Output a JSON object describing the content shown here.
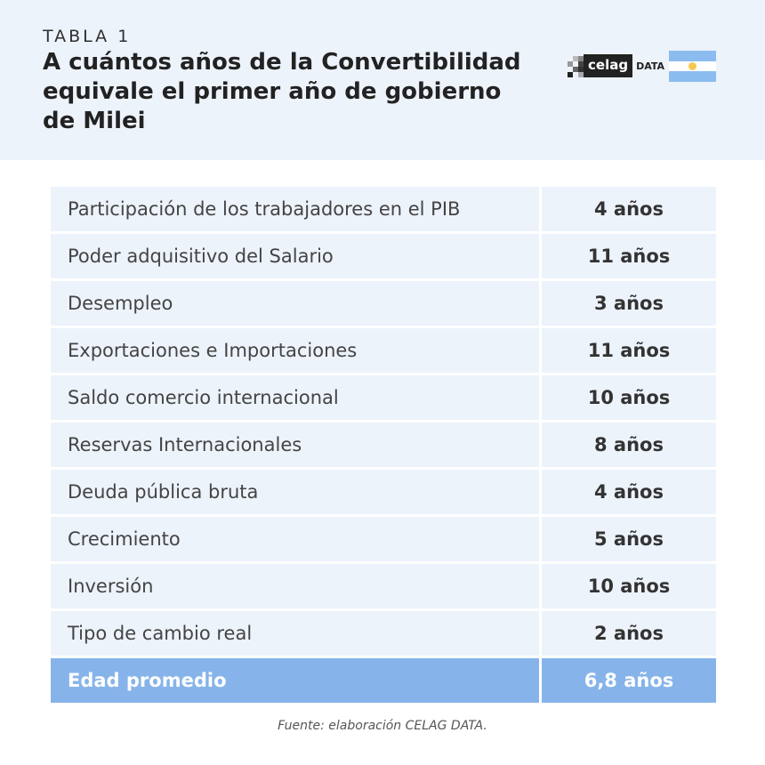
{
  "header": {
    "label": "TABLA 1",
    "title": "A cuántos años de la Convertibilidad equivale el primer año de gobierno de Milei",
    "logo_text": "celag",
    "logo_suffix": "DATA"
  },
  "colors": {
    "header_bg": "#edf3fb",
    "row_bg": "#edf3fb",
    "total_bg": "#86b4ea",
    "flag_blue": "#8cbcef",
    "flag_sun": "#f6c84d"
  },
  "table": {
    "rows": [
      {
        "label": "Participación de los trabajadores en el PIB",
        "value": "4 años"
      },
      {
        "label": "Poder adquisitivo del Salario",
        "value": "11 años"
      },
      {
        "label": "Desempleo",
        "value": "3 años"
      },
      {
        "label": "Exportaciones e Importaciones",
        "value": "11 años"
      },
      {
        "label": "Saldo comercio internacional",
        "value": "10 años"
      },
      {
        "label": "Reservas Internacionales",
        "value": "8 años"
      },
      {
        "label": "Deuda pública bruta",
        "value": "4 años"
      },
      {
        "label": "Crecimiento",
        "value": "5 años"
      },
      {
        "label": "Inversión",
        "value": "10 años"
      },
      {
        "label": "Tipo de cambio real",
        "value": "2 años"
      }
    ],
    "total": {
      "label": "Edad promedio",
      "value": "6,8 años"
    }
  },
  "source": "Fuente: elaboración CELAG DATA."
}
